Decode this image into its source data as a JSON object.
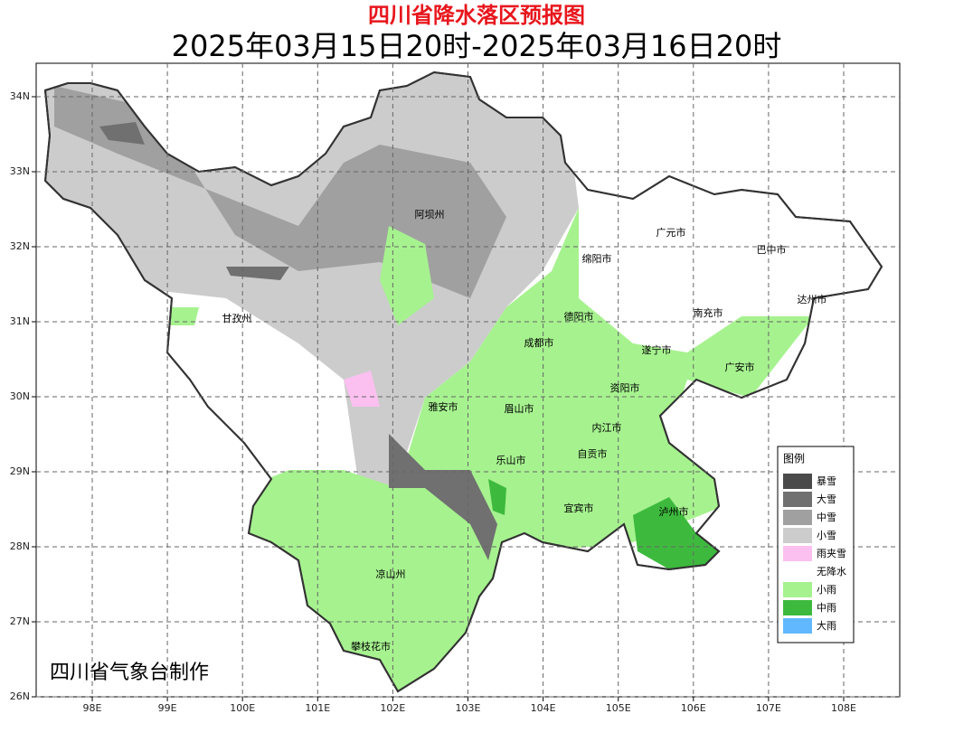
{
  "title": "四川省降水落区预报图",
  "subtitle": "2025年03月15日20时-2025年03月16日20时",
  "credit": "四川省气象台制作",
  "map": {
    "lon_labels": [
      "98E",
      "99E",
      "100E",
      "101E",
      "102E",
      "103E",
      "104E",
      "105E",
      "106E",
      "107E",
      "108E"
    ],
    "lat_labels": [
      "34N",
      "33N",
      "32N",
      "31N",
      "30N",
      "29N",
      "28N",
      "27N",
      "26N"
    ],
    "places": [
      "阿坝州",
      "广元市",
      "巴中市",
      "绵阳市",
      "达州市",
      "德阳市",
      "甘孜州",
      "南充市",
      "成都市",
      "遂宁市",
      "广安市",
      "资阳市",
      "雅安市",
      "眉山市",
      "内江市",
      "自贡市",
      "乐山市",
      "宜宾市",
      "泸州市",
      "凉山州",
      "攀枝花市"
    ]
  },
  "legend": {
    "title": "图例",
    "items": [
      {
        "label": "暴雪",
        "color": "#4a4a4a"
      },
      {
        "label": "大雪",
        "color": "#707070"
      },
      {
        "label": "中雪",
        "color": "#a0a0a0"
      },
      {
        "label": "小雪",
        "color": "#cccccc"
      },
      {
        "label": "雨夹雪",
        "color": "#fbc0f0"
      },
      {
        "label": "无降水",
        "color": "#ffffff"
      },
      {
        "label": "小雨",
        "color": "#a6f28f"
      },
      {
        "label": "中雨",
        "color": "#3dba3d"
      },
      {
        "label": "大雨",
        "color": "#61b8ff"
      }
    ]
  }
}
